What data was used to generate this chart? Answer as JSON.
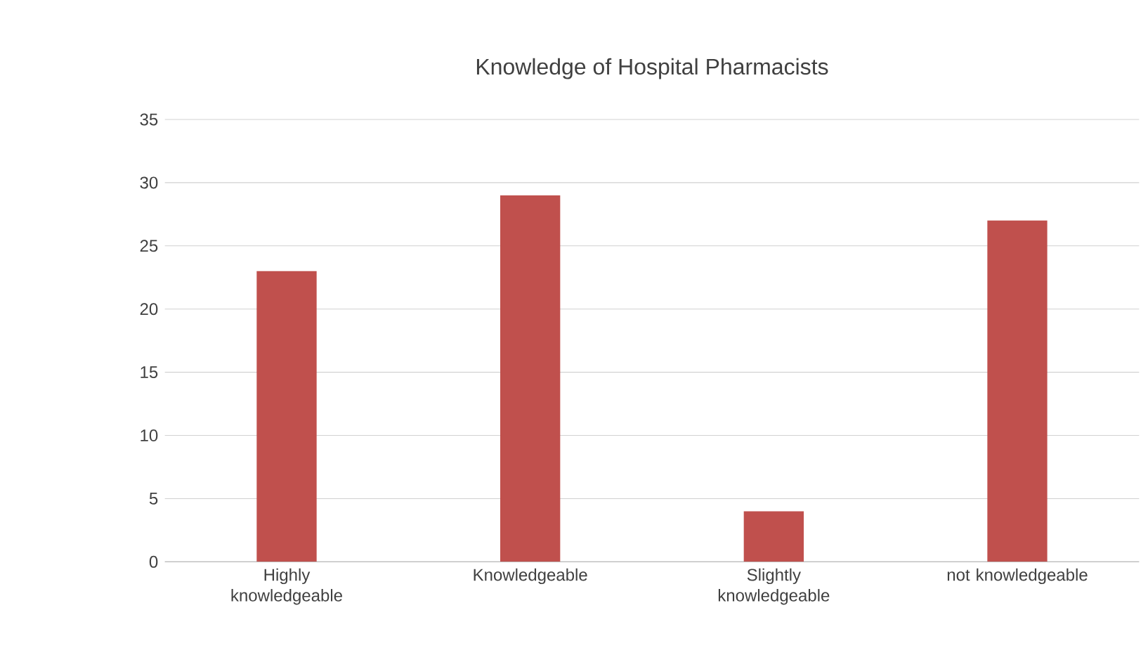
{
  "chart_data": {
    "type": "bar",
    "title": "Knowledge of Hospital Pharmacists",
    "categories": [
      "Highly knowledgeable",
      "Knowledgeable",
      "Slightly knowledgeable",
      "not knowledgeable"
    ],
    "values": [
      23,
      29,
      4,
      27
    ],
    "color": "#c0504d",
    "ylim": [
      0,
      35
    ],
    "yticks": [
      0,
      5,
      10,
      15,
      20,
      25,
      30,
      35
    ],
    "grid": "y"
  }
}
